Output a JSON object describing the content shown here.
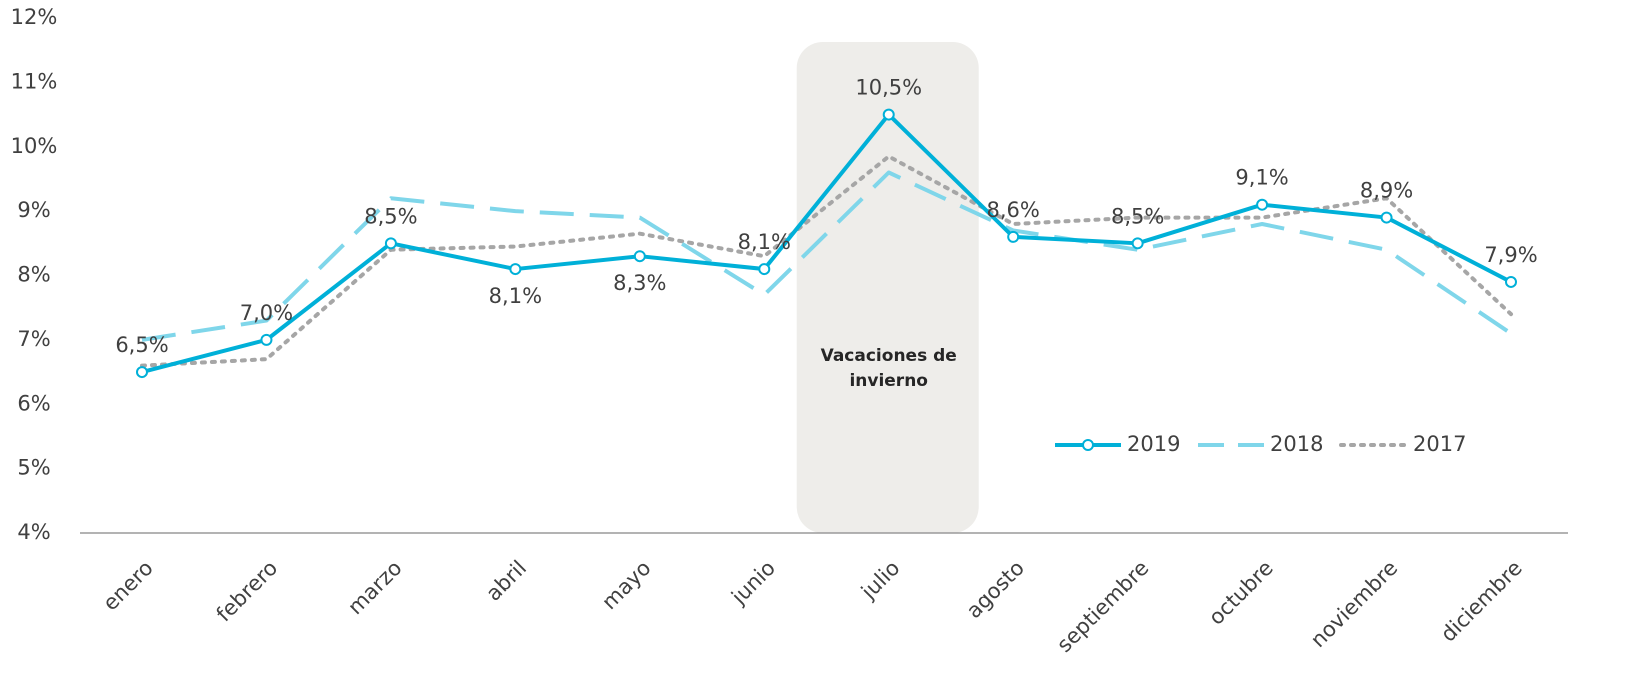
{
  "chart_data": {
    "type": "line",
    "categories": [
      "enero",
      "febrero",
      "marzo",
      "abril",
      "mayo",
      "junio",
      "julio",
      "agosto",
      "septiembre",
      "octubre",
      "noviembre",
      "diciembre"
    ],
    "series": [
      {
        "name": "2019",
        "color": "#00b0d8",
        "style": "solid",
        "markers": true,
        "values": [
          6.5,
          7.0,
          8.5,
          8.1,
          8.3,
          8.1,
          10.5,
          8.6,
          8.5,
          9.1,
          8.9,
          7.9
        ],
        "value_labels": [
          "6,5%",
          "7,0%",
          "8,5%",
          "8,1%",
          "8,3%",
          "8,1%",
          "10,5%",
          "8,6%",
          "8,5%",
          "9,1%",
          "8,9%",
          "7,9%"
        ]
      },
      {
        "name": "2018",
        "color": "#7fd6ea",
        "style": "dashed",
        "values": [
          7.0,
          7.3,
          9.2,
          9.0,
          8.9,
          7.7,
          9.6,
          8.7,
          8.4,
          8.8,
          8.4,
          7.1
        ]
      },
      {
        "name": "2017",
        "color": "#a6a6a6",
        "style": "dotted",
        "values": [
          6.6,
          6.7,
          8.4,
          8.45,
          8.65,
          8.3,
          9.85,
          8.8,
          8.9,
          8.9,
          9.2,
          7.4
        ]
      }
    ],
    "ylim": [
      4,
      12
    ],
    "yticks": [
      {
        "value": 4,
        "label": "4%"
      },
      {
        "value": 5,
        "label": "5%"
      },
      {
        "value": 6,
        "label": "6%"
      },
      {
        "value": 7,
        "label": "7%"
      },
      {
        "value": 8,
        "label": "8%"
      },
      {
        "value": 9,
        "label": "9%"
      },
      {
        "value": 10,
        "label": "10%"
      },
      {
        "value": 11,
        "label": "11%"
      },
      {
        "value": 12,
        "label": "12%"
      }
    ],
    "grid": false,
    "legend": "lower right",
    "annotations": [
      {
        "text": "Vacaciones de invierno",
        "category": "julio"
      }
    ]
  }
}
